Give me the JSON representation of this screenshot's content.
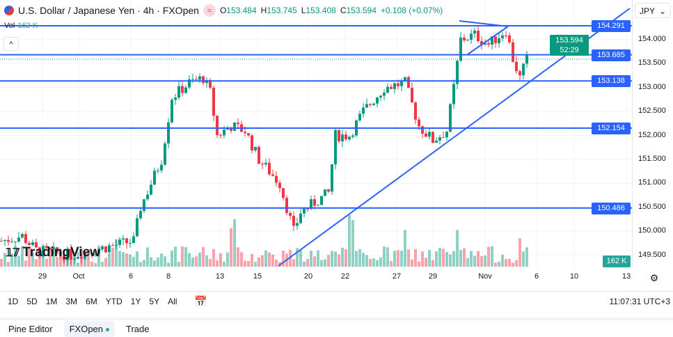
{
  "header": {
    "title": "U.S. Dollar / Japanese Yen · 4h · FXOpen",
    "open_label": "O",
    "open": "153.484",
    "high_label": "H",
    "high": "153.745",
    "low_label": "L",
    "low": "153.408",
    "close_label": "C",
    "close": "153.594",
    "change": "+0.108 (+0.07%)",
    "vol_label": "Vol",
    "vol": "162 K"
  },
  "currency": "JPY",
  "price_axis": {
    "ticks": [
      "154.000",
      "153.500",
      "153.000",
      "152.500",
      "152.000",
      "151.500",
      "151.000",
      "150.500",
      "150.000",
      "149.500"
    ],
    "current_price": "153.594",
    "countdown": "52:29",
    "volume_label": "162 K"
  },
  "levels": [
    "154.291",
    "153.685",
    "153.138",
    "152.154",
    "150.486"
  ],
  "time_axis": [
    "29",
    "Oct",
    "6",
    "8",
    "13",
    "15",
    "20",
    "22",
    "27",
    "29",
    "Nov",
    "6",
    "10",
    "13"
  ],
  "toolbar": {
    "ranges": [
      "1D",
      "5D",
      "1M",
      "3M",
      "6M",
      "YTD",
      "1Y",
      "5Y",
      "All"
    ],
    "clock": "11:07:31 UTC+3"
  },
  "bottom_tabs": {
    "pine": "Pine Editor",
    "fxopen": "FXOpen",
    "trade": "Trade"
  },
  "logo": "TradingView",
  "colors": {
    "up": "#089981",
    "down": "#f23645",
    "line": "#2962ff"
  },
  "chart_data": {
    "type": "candlestick",
    "anchors": [
      [
        0,
        149.8
      ],
      [
        6,
        149.9
      ],
      [
        10,
        149.6
      ],
      [
        20,
        149.5
      ],
      [
        38,
        149.8
      ],
      [
        40,
        150.5
      ],
      [
        46,
        151.5
      ],
      [
        49,
        152.8
      ],
      [
        54,
        153.1
      ],
      [
        58,
        153.2
      ],
      [
        60,
        152.9
      ],
      [
        62,
        152.0
      ],
      [
        66,
        152.2
      ],
      [
        70,
        152.1
      ],
      [
        74,
        151.5
      ],
      [
        80,
        151.0
      ],
      [
        84,
        150.0
      ],
      [
        86,
        150.4
      ],
      [
        90,
        150.6
      ],
      [
        94,
        150.8
      ],
      [
        96,
        152.0
      ],
      [
        100,
        152.0
      ],
      [
        104,
        152.5
      ],
      [
        110,
        153.0
      ],
      [
        116,
        153.1
      ],
      [
        120,
        152.2
      ],
      [
        124,
        151.9
      ],
      [
        128,
        152.1
      ],
      [
        130,
        153.0
      ],
      [
        132,
        154.0
      ],
      [
        136,
        154.1
      ],
      [
        140,
        153.9
      ],
      [
        145,
        154.2
      ],
      [
        147,
        153.6
      ],
      [
        149,
        153.2
      ],
      [
        151,
        153.59
      ]
    ],
    "ylim": [
      149.3,
      154.7
    ]
  }
}
